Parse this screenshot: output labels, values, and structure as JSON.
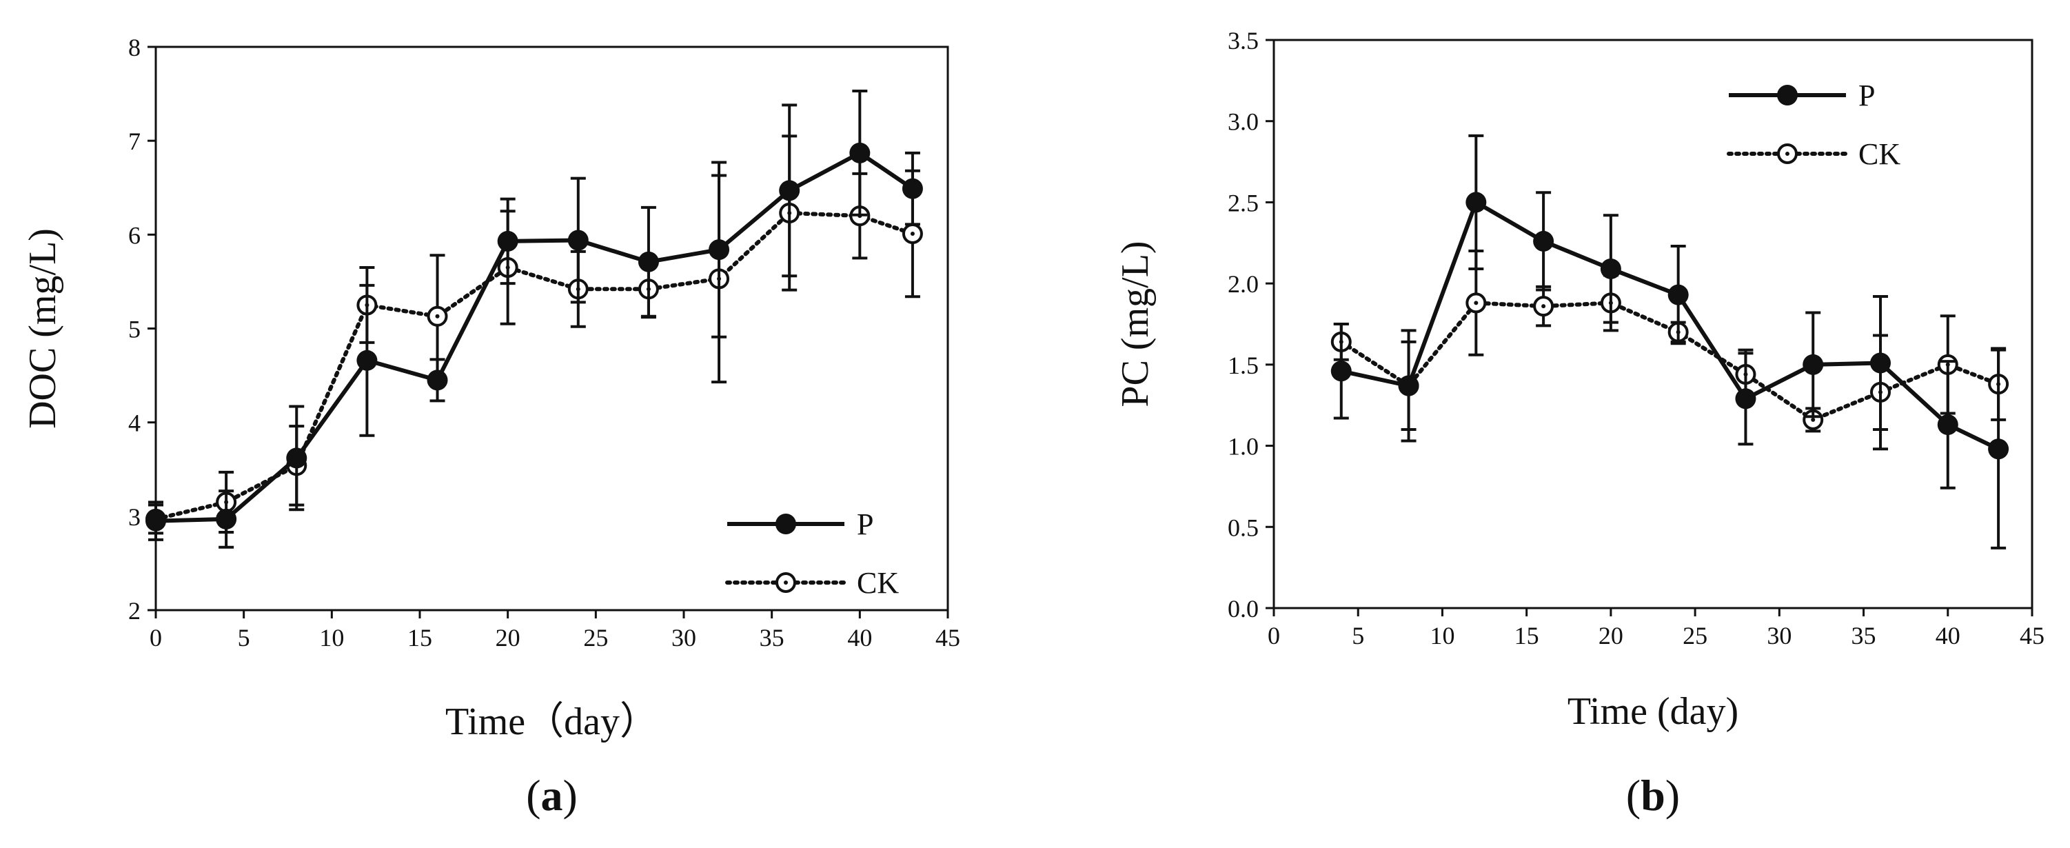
{
  "chart_data": [
    {
      "type": "line",
      "panel": "a",
      "panel_label": "a",
      "xlabel": "Time（day）",
      "ylabel": "DOC (mg/L)",
      "xlim": [
        0,
        45
      ],
      "ylim": [
        2,
        8
      ],
      "xticks": [
        0,
        5,
        10,
        15,
        20,
        25,
        30,
        35,
        40,
        45
      ],
      "yticks": [
        2,
        3,
        4,
        5,
        6,
        7,
        8
      ],
      "legend_position": "bottom-right",
      "series": [
        {
          "name": "P",
          "style": "solid",
          "marker": "filled-circle",
          "x": [
            0,
            4,
            8,
            12,
            16,
            20,
            24,
            28,
            32,
            36,
            40,
            43
          ],
          "values": [
            2.95,
            2.97,
            3.62,
            4.66,
            4.45,
            5.93,
            5.94,
            5.71,
            5.84,
            6.47,
            6.87,
            6.49
          ],
          "error": [
            0.2,
            0.3,
            0.55,
            0.8,
            0.22,
            0.45,
            0.66,
            0.58,
            0.93,
            0.91,
            0.66,
            0.38
          ]
        },
        {
          "name": "CK",
          "style": "dotted",
          "marker": "open-circle",
          "x": [
            0,
            4,
            8,
            12,
            16,
            20,
            24,
            28,
            32,
            36,
            40,
            43
          ],
          "values": [
            2.97,
            3.15,
            3.54,
            5.25,
            5.13,
            5.65,
            5.42,
            5.42,
            5.53,
            6.23,
            6.2,
            6.01
          ],
          "error": [
            0.15,
            0.32,
            0.42,
            0.4,
            0.65,
            0.6,
            0.4,
            0.3,
            1.1,
            0.82,
            0.45,
            0.67
          ]
        }
      ]
    },
    {
      "type": "line",
      "panel": "b",
      "panel_label": "b",
      "xlabel": "Time (day)",
      "ylabel": "PC (mg/L)",
      "xlim": [
        0,
        45
      ],
      "ylim": [
        0,
        3.5
      ],
      "xticks": [
        0,
        5,
        10,
        15,
        20,
        25,
        30,
        35,
        40,
        45
      ],
      "yticks": [
        "0.0",
        "0.5",
        "1.0",
        "1.5",
        "2.0",
        "2.5",
        "3.0",
        "3.5"
      ],
      "legend_position": "top-right",
      "series": [
        {
          "name": "P",
          "style": "solid",
          "marker": "filled-circle",
          "x": [
            4,
            8,
            12,
            16,
            20,
            24,
            28,
            32,
            36,
            40,
            43
          ],
          "values": [
            1.46,
            1.37,
            2.5,
            2.26,
            2.09,
            1.93,
            1.29,
            1.5,
            1.51,
            1.13,
            0.98
          ],
          "error": [
            0.29,
            0.34,
            0.41,
            0.3,
            0.33,
            0.3,
            0.28,
            0.32,
            0.41,
            0.39,
            0.61
          ]
        },
        {
          "name": "CK",
          "style": "dotted",
          "marker": "open-circle",
          "x": [
            4,
            8,
            12,
            16,
            20,
            24,
            28,
            32,
            36,
            40,
            43
          ],
          "values": [
            1.64,
            1.37,
            1.88,
            1.86,
            1.88,
            1.7,
            1.44,
            1.16,
            1.33,
            1.5,
            1.38
          ],
          "error": [
            0.11,
            0.27,
            0.32,
            0.12,
            0.17,
            0.06,
            0.15,
            0.07,
            0.35,
            0.3,
            0.22
          ]
        }
      ]
    }
  ]
}
